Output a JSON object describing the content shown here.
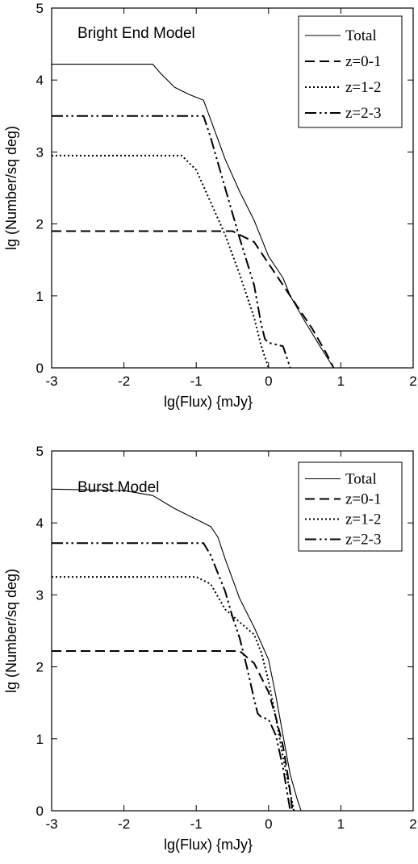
{
  "chart_data": [
    {
      "type": "line",
      "title": "Bright End Model",
      "xlabel": "lg(Flux)  {mJy}",
      "ylabel": "lg (Number/sq deg)",
      "xlim": [
        -3,
        2
      ],
      "ylim": [
        0,
        5
      ],
      "xticks": [
        "-3",
        "-2",
        "-1",
        "0",
        "1",
        "2"
      ],
      "yticks": [
        "0",
        "1",
        "2",
        "3",
        "4",
        "5"
      ],
      "legend_position": "top-right",
      "series": [
        {
          "name": "Total",
          "style": "solid-thin",
          "x": [
            -3,
            -1.6,
            -1.5,
            -1.3,
            -1.1,
            -0.9,
            -0.8,
            -0.6,
            -0.4,
            -0.2,
            0,
            0.2,
            0.3,
            0.5,
            0.7,
            0.9
          ],
          "y": [
            4.22,
            4.22,
            4.1,
            3.9,
            3.8,
            3.72,
            3.45,
            2.9,
            2.45,
            2.05,
            1.55,
            1.25,
            1.0,
            0.65,
            0.32,
            0.0
          ]
        },
        {
          "name": "z=0-1",
          "style": "dashed",
          "x": [
            -3,
            -0.5,
            -0.2,
            0,
            0.2,
            0.4,
            0.6,
            0.8,
            0.9
          ],
          "y": [
            1.9,
            1.9,
            1.75,
            1.45,
            1.15,
            0.85,
            0.55,
            0.2,
            0.0
          ]
        },
        {
          "name": "z=1-2",
          "style": "dotted",
          "x": [
            -3,
            -1.2,
            -1.0,
            -0.8,
            -0.6,
            -0.4,
            -0.2,
            -0.1,
            0
          ],
          "y": [
            2.95,
            2.95,
            2.75,
            2.3,
            1.85,
            1.3,
            0.7,
            0.3,
            0.0
          ]
        },
        {
          "name": "z=2-3",
          "style": "dash-dot-dot",
          "x": [
            -3,
            -0.9,
            -0.8,
            -0.6,
            -0.4,
            -0.2,
            -0.1,
            -0.05,
            0,
            0.2,
            0.3
          ],
          "y": [
            3.5,
            3.5,
            3.2,
            2.5,
            1.8,
            1.15,
            0.6,
            0.4,
            0.35,
            0.3,
            0.0
          ]
        }
      ]
    },
    {
      "type": "line",
      "title": "Burst Model",
      "xlabel": "lg(Flux)  {mJy}",
      "ylabel": "lg (Number/sq deg)",
      "xlim": [
        -3,
        2
      ],
      "ylim": [
        0,
        5
      ],
      "xticks": [
        "-3",
        "-2",
        "-1",
        "0",
        "1",
        "2"
      ],
      "yticks": [
        "0",
        "1",
        "2",
        "3",
        "4",
        "5"
      ],
      "legend_position": "top-right",
      "series": [
        {
          "name": "Total",
          "style": "solid-thin",
          "x": [
            -3,
            -2.0,
            -1.6,
            -1.3,
            -1.0,
            -0.8,
            -0.7,
            -0.6,
            -0.4,
            -0.2,
            0,
            0.1,
            0.2,
            0.3,
            0.4,
            0.45
          ],
          "y": [
            4.47,
            4.45,
            4.38,
            4.2,
            4.05,
            3.95,
            3.8,
            3.5,
            2.95,
            2.55,
            2.1,
            1.6,
            1.05,
            0.5,
            0.15,
            0.0
          ]
        },
        {
          "name": "z=0-1",
          "style": "dashed",
          "x": [
            -3,
            -0.4,
            -0.2,
            0,
            0.1,
            0.2,
            0.25,
            0.3,
            0.33
          ],
          "y": [
            2.22,
            2.22,
            2.05,
            1.65,
            1.3,
            0.9,
            0.6,
            0.25,
            0.0
          ]
        },
        {
          "name": "z=1-2",
          "style": "dotted",
          "x": [
            -3,
            -1.0,
            -0.8,
            -0.6,
            -0.4,
            -0.2,
            -0.1,
            0,
            0.1,
            0.2,
            0.3,
            0.35
          ],
          "y": [
            3.25,
            3.25,
            3.15,
            2.8,
            2.62,
            2.45,
            2.2,
            1.8,
            1.3,
            0.75,
            0.25,
            0.0
          ]
        },
        {
          "name": "z=2-3",
          "style": "dash-dot-dot",
          "x": [
            -3,
            -0.9,
            -0.8,
            -0.6,
            -0.5,
            -0.4,
            -0.3,
            -0.2,
            -0.15,
            -0.1,
            0,
            0.1,
            0.2,
            0.3
          ],
          "y": [
            3.72,
            3.72,
            3.55,
            3.05,
            2.7,
            2.4,
            2.0,
            1.55,
            1.35,
            1.3,
            1.27,
            1.05,
            0.6,
            0.0
          ]
        }
      ]
    }
  ]
}
